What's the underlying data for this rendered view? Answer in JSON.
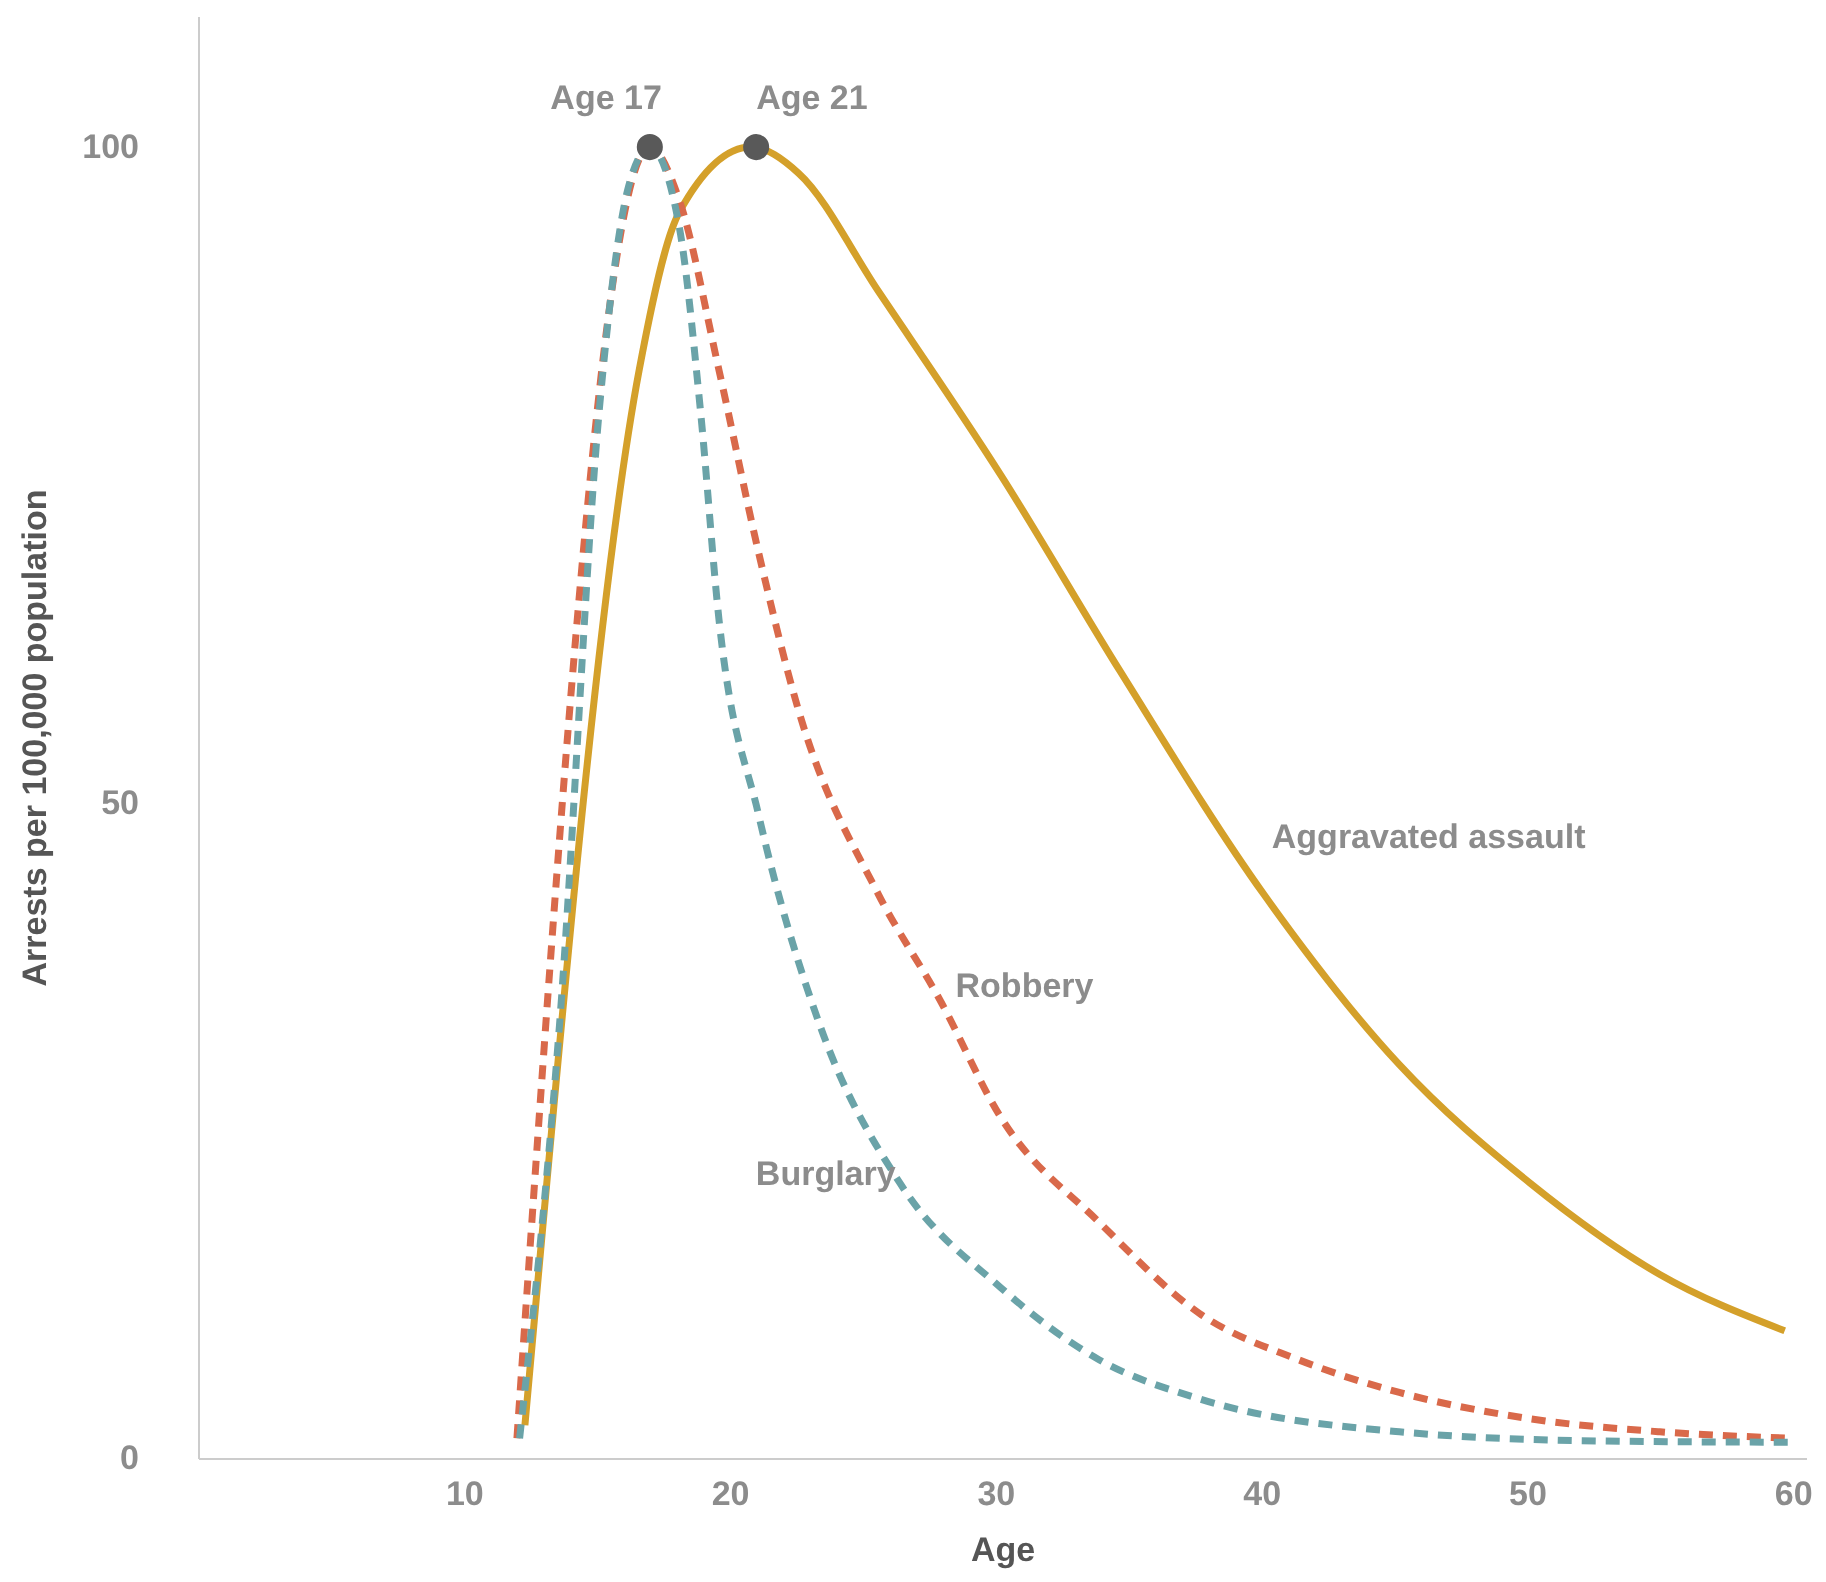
{
  "chart_data": {
    "type": "line",
    "xlabel": "Age",
    "ylabel": "Arrests per 100,000 population",
    "xlim": [
      0,
      60.5
    ],
    "ylim": [
      0,
      110
    ],
    "xticks": [
      10,
      20,
      30,
      40,
      50,
      60
    ],
    "yticks": [
      0,
      50,
      100
    ],
    "grid": false,
    "legend": false,
    "series": [
      {
        "name": "Aggravated assault",
        "color": "#d4a02a",
        "line_style": "solid",
        "x": [
          12.3,
          16.6,
          18.1,
          20.8,
          22.6,
          25.6,
          30.2,
          34.7,
          40.1,
          45.2,
          50.1,
          55,
          59.7
        ],
        "values": [
          2.5,
          83,
          95,
          100,
          98,
          89,
          75,
          60,
          43,
          30,
          21,
          14,
          9.7
        ]
      },
      {
        "name": "Robbery",
        "color": "#d9694a",
        "line_style": "dashed",
        "x": [
          12,
          17,
          18.1,
          19.6,
          21.1,
          22.6,
          25.6,
          27.9,
          30.2,
          33.9,
          37.7,
          41.4,
          45.2,
          50.1,
          55,
          60
        ],
        "values": [
          1.5,
          100,
          96,
          83,
          69,
          57,
          43,
          35,
          26,
          18,
          11,
          7.5,
          5,
          3,
          2,
          1.5
        ]
      },
      {
        "name": "Burglary",
        "color": "#6aa3a8",
        "line_style": "dashed",
        "x": [
          12.1,
          13.6,
          15.1,
          16.2,
          17,
          18.1,
          18.9,
          19.6,
          21.1,
          23.4,
          26.4,
          30.2,
          33.9,
          37.7,
          45.2,
          52.7,
          60
        ],
        "values": [
          1.5,
          33,
          80,
          97,
          100,
          94,
          80,
          64,
          49,
          33,
          21,
          13,
          7.5,
          4.5,
          2,
          1.3,
          1.2
        ]
      },
      {
        "type": "scatter",
        "color": "#595959",
        "marker": "circle",
        "x": [
          17,
          21
        ],
        "values": [
          100,
          100
        ]
      }
    ],
    "annotations": [
      {
        "text": "Age 17",
        "x": 17,
        "y": 100
      },
      {
        "text": "Age 21",
        "x": 21,
        "y": 100
      }
    ]
  }
}
